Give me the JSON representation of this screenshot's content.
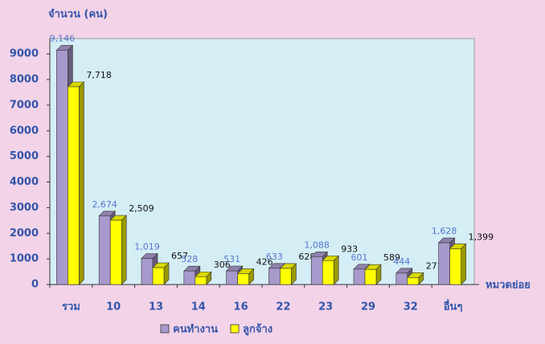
{
  "chart_data": {
    "type": "bar3d",
    "y_label": "จำนวน (คน)",
    "x_label": "หมวดย่อย",
    "categories": [
      "รวม",
      "10",
      "13",
      "14",
      "16",
      "22",
      "23",
      "29",
      "32",
      "อื่นๆ"
    ],
    "series": [
      {
        "name": "คนทำงาน",
        "color": "#a899cc",
        "values": [
          9146,
          2674,
          1019,
          528,
          531,
          633,
          1088,
          601,
          444,
          1628
        ],
        "value_labels": [
          "9,146",
          "2,674",
          "1,019",
          "528",
          "531",
          "633",
          "1,088",
          "601",
          "444",
          "1,628"
        ]
      },
      {
        "name": "ลูกจ้าง",
        "color": "#ffff00",
        "values": [
          7718,
          2509,
          657,
          306,
          426,
          628,
          933,
          589,
          271,
          1399
        ],
        "value_labels": [
          "7,718",
          "2,509",
          "657",
          "306",
          "426",
          "628",
          "933",
          "589",
          "271",
          "1,399"
        ]
      }
    ],
    "ylim": [
      0,
      9600
    ],
    "yticks": [
      0,
      1000,
      2000,
      3000,
      4000,
      5000,
      6000,
      7000,
      8000,
      9000
    ],
    "legend": "bottom"
  }
}
